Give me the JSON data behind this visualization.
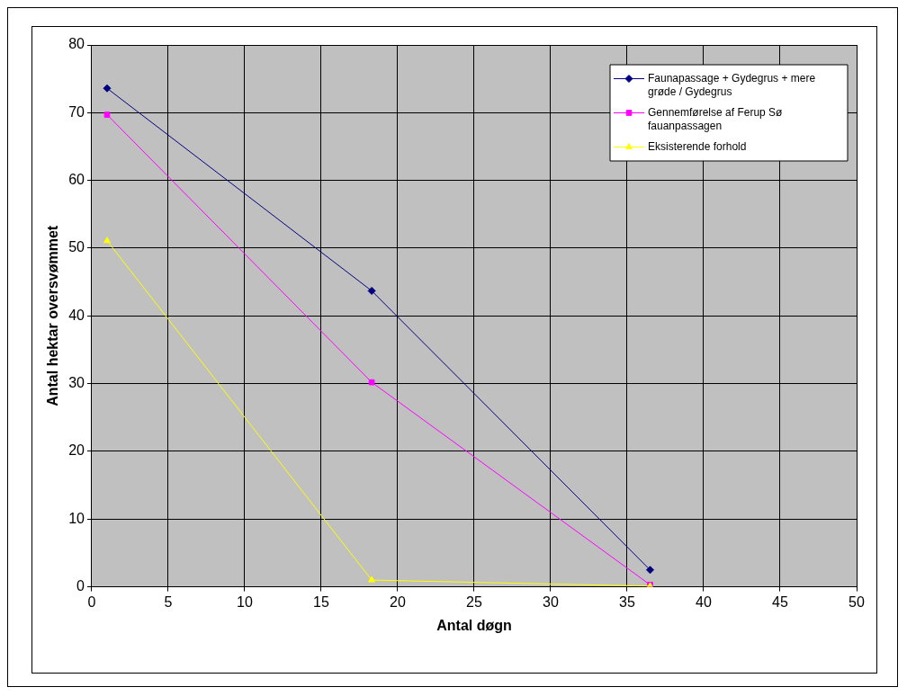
{
  "chart_data": {
    "type": "line",
    "xlabel": "Antal døgn",
    "ylabel": "Antal hektar oversvømmet",
    "xlim": [
      0,
      50
    ],
    "xticks": [
      0,
      5,
      10,
      15,
      20,
      25,
      30,
      35,
      40,
      45,
      50
    ],
    "ylim": [
      0,
      80
    ],
    "yticks": [
      0,
      10,
      20,
      30,
      40,
      50,
      60,
      70,
      80
    ],
    "grid": true,
    "legend": "top right",
    "series": [
      {
        "name": "Faunapassage + Gydegrus + mere grøde / Gydegrus",
        "color": "#000080",
        "marker": "diamond",
        "x": [
          1,
          18.3,
          36.5
        ],
        "values": [
          73.6,
          43.7,
          2.5
        ]
      },
      {
        "name": "Gennemførelse af Ferup Sø fauanpassagen",
        "color": "#ff00ff",
        "marker": "square",
        "x": [
          1,
          18.3,
          36.5
        ],
        "values": [
          69.7,
          30.2,
          0.3
        ]
      },
      {
        "name": "Eksisterende forhold",
        "color": "#ffff00",
        "marker": "triangle",
        "x": [
          1,
          18.3,
          36.5
        ],
        "values": [
          51.1,
          1.0,
          0.1
        ]
      }
    ]
  }
}
